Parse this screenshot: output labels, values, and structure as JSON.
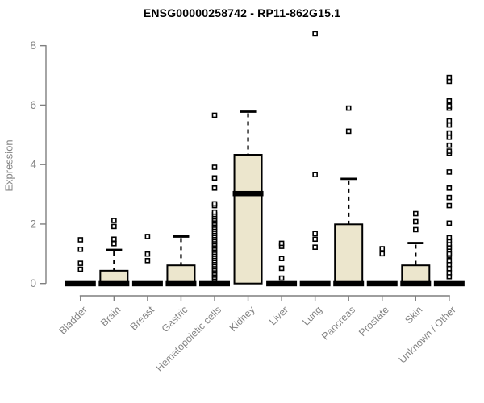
{
  "title": "ENSG00000258742 - RP11-862G15.1",
  "colors": {
    "background": "#ffffff",
    "box_fill": "#ece6cd",
    "box_border": "#000000",
    "median": "#000000",
    "whisker": "#000000",
    "outlier_stroke": "#000000",
    "outlier_fill": "#ffffff",
    "axis_line": "#7f7f7f",
    "axis_text": "#848484",
    "title_text": "#000000"
  },
  "chart_data": {
    "type": "boxplot",
    "title": "ENSG00000258742 - RP11-862G15.1",
    "xlabel": "",
    "ylabel": "Expression",
    "ylim": [
      0,
      8
    ],
    "yticks": [
      0,
      2,
      4,
      6,
      8
    ],
    "grid": false,
    "legend": false,
    "categories": [
      "Bladder",
      "Brain",
      "Breast",
      "Gastric",
      "Hematopoietic cells",
      "Kidney",
      "Liver",
      "Lung",
      "Pancreas",
      "Prostate",
      "Skin",
      "Unknown / Other"
    ],
    "series": [
      {
        "name": "Bladder",
        "q1": 0,
        "median": 0,
        "q3": 0,
        "whisker_low": 0,
        "whisker_high": 0,
        "outliers": [
          0.48,
          0.68,
          1.15,
          1.47
        ]
      },
      {
        "name": "Brain",
        "q1": 0,
        "median": 0,
        "q3": 0.43,
        "whisker_low": 0,
        "whisker_high": 1.13,
        "outliers": [
          1.34,
          1.49,
          1.92,
          2.12
        ]
      },
      {
        "name": "Breast",
        "q1": 0,
        "median": 0,
        "q3": 0,
        "whisker_low": 0,
        "whisker_high": 0,
        "outliers": [
          0.77,
          0.99,
          1.58
        ]
      },
      {
        "name": "Gastric",
        "q1": 0,
        "median": 0,
        "q3": 0.61,
        "whisker_low": 0,
        "whisker_high": 1.58,
        "outliers": []
      },
      {
        "name": "Hematopoietic cells",
        "q1": 0,
        "median": 0,
        "q3": 0,
        "whisker_low": 0,
        "whisker_high": 0,
        "outliers": [
          0.14,
          0.21,
          0.28,
          0.35,
          0.42,
          0.49,
          0.56,
          0.63,
          0.7,
          0.77,
          0.84,
          0.91,
          0.98,
          1.05,
          1.12,
          1.19,
          1.26,
          1.33,
          1.4,
          1.47,
          1.54,
          1.61,
          1.68,
          1.75,
          1.82,
          1.89,
          1.96,
          2.03,
          2.1,
          2.17,
          2.24,
          2.32,
          2.4,
          2.62,
          2.68,
          3.21,
          3.55,
          3.91,
          5.66
        ]
      },
      {
        "name": "Kidney",
        "q1": 0,
        "median": 3.03,
        "q3": 4.33,
        "whisker_low": 0,
        "whisker_high": 5.78,
        "outliers": []
      },
      {
        "name": "Liver",
        "q1": 0,
        "median": 0,
        "q3": 0,
        "whisker_low": 0,
        "whisker_high": 0,
        "outliers": [
          0.18,
          0.51,
          0.84,
          1.25,
          1.35
        ]
      },
      {
        "name": "Lung",
        "q1": 0,
        "median": 0,
        "q3": 0,
        "whisker_low": 0,
        "whisker_high": 0,
        "outliers": [
          1.22,
          1.49,
          1.68,
          3.66,
          8.4
        ]
      },
      {
        "name": "Pancreas",
        "q1": 0,
        "median": 0,
        "q3": 1.99,
        "whisker_low": 0,
        "whisker_high": 3.52,
        "outliers": [
          5.12,
          5.9
        ]
      },
      {
        "name": "Prostate",
        "q1": 0,
        "median": 0,
        "q3": 0,
        "whisker_low": 0,
        "whisker_high": 0,
        "outliers": [
          1.0,
          1.17
        ]
      },
      {
        "name": "Skin",
        "q1": 0,
        "median": 0,
        "q3": 0.61,
        "whisker_low": 0,
        "whisker_high": 1.36,
        "outliers": [
          1.81,
          2.08,
          2.35
        ]
      },
      {
        "name": "Unknown / Other",
        "q1": 0,
        "median": 0,
        "q3": 0,
        "whisker_low": 0,
        "whisker_high": 0,
        "outliers": [
          0.23,
          0.36,
          0.5,
          0.64,
          0.77,
          0.95,
          1.0,
          1.13,
          1.22,
          1.33,
          1.44,
          1.54,
          2.03,
          2.62,
          2.89,
          3.21,
          3.75,
          4.38,
          4.45,
          4.65,
          4.92,
          5.06,
          5.33,
          5.47,
          5.9,
          5.97,
          6.14,
          6.8,
          6.93
        ]
      }
    ]
  }
}
